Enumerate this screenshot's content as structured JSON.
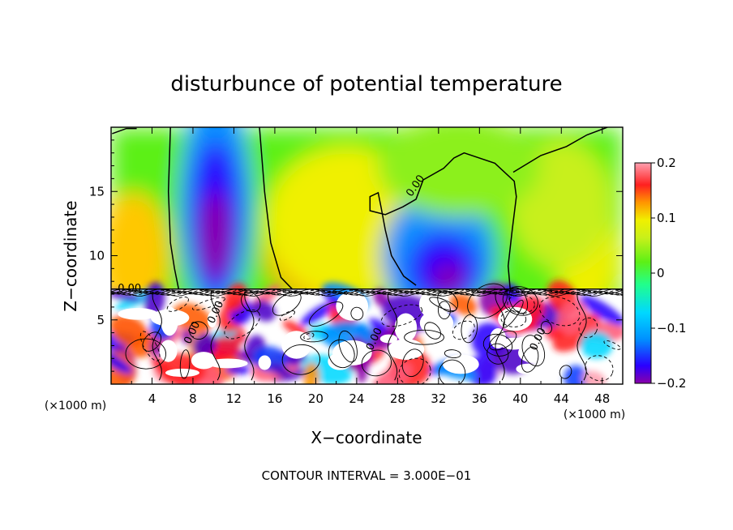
{
  "chart_data": {
    "type": "heatmap",
    "title": "disturbunce of potential temperature",
    "xlabel": "X−coordinate",
    "ylabel": "Z−coordinate",
    "xunit": "(×1000 m)",
    "yunit": "(×1000 m)",
    "x_ticks": [
      "4",
      "8",
      "12",
      "16",
      "20",
      "24",
      "28",
      "32",
      "36",
      "40",
      "44",
      "48"
    ],
    "y_ticks": [
      "5",
      "10",
      "15"
    ],
    "colorbar_ticks": [
      "0.2",
      "0.1",
      "0",
      "−0.1",
      "−0.2"
    ],
    "colorbar_range": [
      -0.2,
      0.2
    ],
    "xlim": [
      0,
      50
    ],
    "ylim": [
      0,
      20
    ],
    "footer": "CONTOUR INTERVAL = 3.000E−01",
    "contour_labels": [
      {
        "text": "0.00",
        "x": 30,
        "y": 15.3
      },
      {
        "text": "0.00",
        "x": 1.8,
        "y": 7.2
      },
      {
        "text": "0.00",
        "x": 8.2,
        "y": 3.9
      },
      {
        "text": "0.00",
        "x": 10.5,
        "y": 5.5
      },
      {
        "text": "0.00",
        "x": 26,
        "y": 3.4
      },
      {
        "text": "0.00",
        "x": 42,
        "y": 3.4
      }
    ],
    "palette": [
      "#8a00a8",
      "#4b00c8",
      "#2a00ff",
      "#0a40ff",
      "#0090ff",
      "#00d8ff",
      "#22ff8a",
      "#5cf016",
      "#8cf01a",
      "#c8f01a",
      "#f0f000",
      "#ffc800",
      "#ff9600",
      "#ff5a00",
      "#ff2020",
      "#ff0a2d",
      "#ff5a78",
      "#ffa0b0"
    ]
  }
}
